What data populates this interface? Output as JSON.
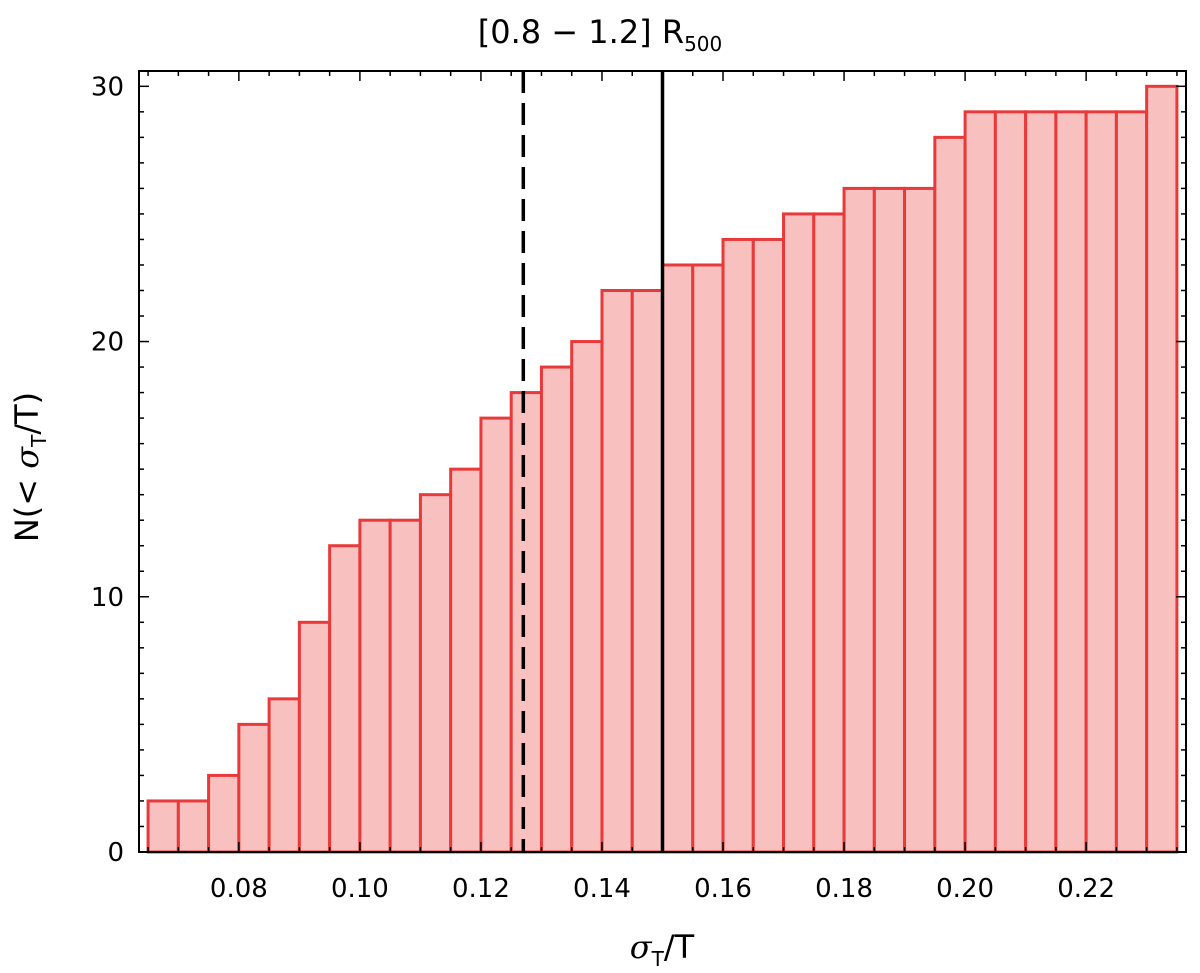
{
  "chart_data": {
    "type": "bar",
    "subtype": "cumulative histogram",
    "title": {
      "main": "[0.8 − 1.2] R",
      "subscript": "500"
    },
    "xlabel": {
      "sym": "σ",
      "sub": "T",
      "rest": "/T"
    },
    "ylabel": {
      "pre": "N(< ",
      "sym": "σ",
      "sub": "T",
      "rest": "/T)"
    },
    "bin_edges": [
      0.065,
      0.07,
      0.075,
      0.08,
      0.085,
      0.09,
      0.095,
      0.1,
      0.105,
      0.11,
      0.115,
      0.12,
      0.125,
      0.13,
      0.135,
      0.14,
      0.145,
      0.15,
      0.155,
      0.16,
      0.165,
      0.17,
      0.175,
      0.18,
      0.185,
      0.19,
      0.195,
      0.2,
      0.205,
      0.21,
      0.215,
      0.22,
      0.225,
      0.23,
      0.235
    ],
    "values": [
      2,
      2,
      3,
      5,
      6,
      9,
      12,
      13,
      13,
      14,
      15,
      17,
      18,
      19,
      20,
      22,
      22,
      23,
      23,
      24,
      24,
      25,
      25,
      26,
      26,
      26,
      28,
      29,
      29,
      29,
      29,
      29,
      29,
      30
    ],
    "xlim": [
      0.0635,
      0.2365
    ],
    "ylim": [
      0,
      30.6
    ],
    "xticks": [
      0.08,
      0.1,
      0.12,
      0.14,
      0.16,
      0.18,
      0.2,
      0.22
    ],
    "xtick_labels": [
      "0.08",
      "0.10",
      "0.12",
      "0.14",
      "0.16",
      "0.18",
      "0.20",
      "0.22"
    ],
    "yticks": [
      0,
      10,
      20,
      30
    ],
    "ytick_labels": [
      "0",
      "10",
      "20",
      "30"
    ],
    "vlines": [
      {
        "x": 0.127,
        "style": "dashed",
        "color": "#000000"
      },
      {
        "x": 0.15,
        "style": "solid",
        "color": "#000000"
      }
    ],
    "bar_fill": "#f9c0c0",
    "bar_edge": "#e83a3a",
    "grid": false,
    "legend": "none"
  }
}
